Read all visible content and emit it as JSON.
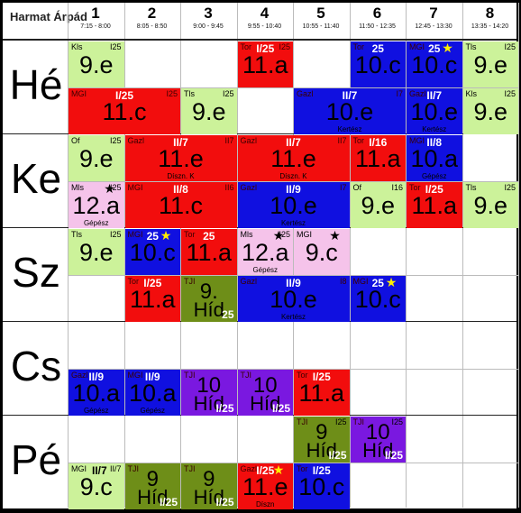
{
  "title": "Harmat Árpád",
  "periods": [
    {
      "n": "1",
      "t": "7:15 - 8:00"
    },
    {
      "n": "2",
      "t": "8:05 - 8:50"
    },
    {
      "n": "3",
      "t": "9:00 - 9:45"
    },
    {
      "n": "4",
      "t": "9:55 - 10:40"
    },
    {
      "n": "5",
      "t": "10:55 - 11:40"
    },
    {
      "n": "6",
      "t": "11:50 - 12:35"
    },
    {
      "n": "7",
      "t": "12:45 - 13:30"
    },
    {
      "n": "8",
      "t": "13:35 - 14:20"
    }
  ],
  "days": [
    "Hé",
    "Ke",
    "Sz",
    "Cs",
    "Pé"
  ],
  "lessons": [
    {
      "d": 0,
      "r": 0,
      "p": 0,
      "s": 1,
      "c": "green",
      "tl": "Kls",
      "tr": "I25",
      "cls": "9.e"
    },
    {
      "d": 0,
      "r": 0,
      "p": 3,
      "s": 1,
      "c": "red",
      "tl": "Tor",
      "tr": "I25",
      "cls": "11.a",
      "badge": "I/25"
    },
    {
      "d": 0,
      "r": 0,
      "p": 5,
      "s": 1,
      "c": "blue",
      "tl": "Tor",
      "tr": "",
      "cls": "10.c",
      "badge": "25"
    },
    {
      "d": 0,
      "r": 0,
      "p": 6,
      "s": 1,
      "c": "blue",
      "tl": "MGI",
      "tr": "",
      "cls": "10.c",
      "badge": "25",
      "star": "yellow"
    },
    {
      "d": 0,
      "r": 0,
      "p": 7,
      "s": 1,
      "c": "green",
      "tl": "Tls",
      "tr": "I25",
      "cls": "9.e"
    },
    {
      "d": 0,
      "r": 1,
      "p": 0,
      "s": 2,
      "c": "red",
      "tl": "MGI",
      "tr": "I25",
      "cls": "11.c",
      "badge": "I/25"
    },
    {
      "d": 0,
      "r": 1,
      "p": 2,
      "s": 1,
      "c": "green",
      "tl": "Tls",
      "tr": "I25",
      "cls": "9.e"
    },
    {
      "d": 0,
      "r": 1,
      "p": 4,
      "s": 2,
      "c": "blue",
      "tl": "Gazl",
      "tr": "I7",
      "cls": "10.e",
      "sub": "Kertész",
      "badge": "II/7"
    },
    {
      "d": 0,
      "r": 1,
      "p": 6,
      "s": 1,
      "c": "blue",
      "tl": "Gazl",
      "tr": "",
      "cls": "10.e",
      "sub": "Kertész",
      "badge": "II/7"
    },
    {
      "d": 0,
      "r": 1,
      "p": 7,
      "s": 1,
      "c": "green",
      "tl": "Kls",
      "tr": "I25",
      "cls": "9.e"
    },
    {
      "d": 1,
      "r": 0,
      "p": 0,
      "s": 1,
      "c": "green",
      "tl": "Of",
      "tr": "I25",
      "cls": "9.e"
    },
    {
      "d": 1,
      "r": 0,
      "p": 1,
      "s": 2,
      "c": "red",
      "tl": "Gazl",
      "tr": "II7",
      "cls": "11.e",
      "sub": "Díszn. K",
      "badge": "II/7"
    },
    {
      "d": 1,
      "r": 0,
      "p": 3,
      "s": 2,
      "c": "red",
      "tl": "Gazl",
      "tr": "II7",
      "cls": "11.e",
      "sub": "Díszn. K",
      "badge": "II/7"
    },
    {
      "d": 1,
      "r": 0,
      "p": 5,
      "s": 1,
      "c": "red",
      "tl": "Tor",
      "tr": "",
      "cls": "11.a",
      "badge": "I/16"
    },
    {
      "d": 1,
      "r": 0,
      "p": 6,
      "s": 1,
      "c": "blue",
      "tl": "MGI",
      "tr": "",
      "cls": "10.a",
      "sub": "Gépész",
      "badge": "II/8"
    },
    {
      "d": 1,
      "r": 1,
      "p": 0,
      "s": 1,
      "c": "pink",
      "tl": "Mls",
      "tr": "I25",
      "cls": "12.a",
      "sub": "Gépész",
      "star": "black"
    },
    {
      "d": 1,
      "r": 1,
      "p": 1,
      "s": 2,
      "c": "red",
      "tl": "MGI",
      "tr": "II6",
      "cls": "11.c",
      "badge": "II/8"
    },
    {
      "d": 1,
      "r": 1,
      "p": 3,
      "s": 2,
      "c": "blue",
      "tl": "Gazl",
      "tr": "I7",
      "cls": "10.e",
      "sub": "Kertész",
      "badge": "II/9"
    },
    {
      "d": 1,
      "r": 1,
      "p": 5,
      "s": 1,
      "c": "green",
      "tl": "Of",
      "tr": "I16",
      "cls": "9.e"
    },
    {
      "d": 1,
      "r": 1,
      "p": 6,
      "s": 1,
      "c": "red",
      "tl": "Tor",
      "tr": "",
      "cls": "11.a",
      "badge": "I/25"
    },
    {
      "d": 1,
      "r": 1,
      "p": 7,
      "s": 1,
      "c": "green",
      "tl": "Tls",
      "tr": "I25",
      "cls": "9.e"
    },
    {
      "d": 2,
      "r": 0,
      "p": 0,
      "s": 1,
      "c": "green",
      "tl": "Tls",
      "tr": "I25",
      "cls": "9.e"
    },
    {
      "d": 2,
      "r": 0,
      "p": 1,
      "s": 1,
      "c": "blue",
      "tl": "MGI",
      "tr": "",
      "cls": "10.c",
      "badge": "25",
      "star": "yellow"
    },
    {
      "d": 2,
      "r": 0,
      "p": 2,
      "s": 1,
      "c": "red",
      "tl": "Tor",
      "tr": "",
      "cls": "11.a",
      "badge": "25"
    },
    {
      "d": 2,
      "r": 0,
      "p": 3,
      "s": 1,
      "c": "pink",
      "tl": "Mls",
      "tr": "I25",
      "cls": "12.a",
      "sub": "Gépész",
      "star": "black"
    },
    {
      "d": 2,
      "r": 0,
      "p": 4,
      "s": 1,
      "c": "pink",
      "tl": "MGI",
      "tr": "",
      "cls": "9.c",
      "star": "black"
    },
    {
      "d": 2,
      "r": 1,
      "p": 1,
      "s": 1,
      "c": "red",
      "tl": "Tor",
      "tr": "",
      "cls": "11.a",
      "badge": "I/25"
    },
    {
      "d": 2,
      "r": 1,
      "p": 2,
      "s": 1,
      "c": "olive",
      "tl": "TJI",
      "tr": "",
      "cls": "9.",
      "cls2": "Híd",
      "badge": "25"
    },
    {
      "d": 2,
      "r": 1,
      "p": 3,
      "s": 2,
      "c": "blue",
      "tl": "Gazl",
      "tr": "I8",
      "cls": "10.e",
      "sub": "Kertész",
      "badge": "II/9"
    },
    {
      "d": 2,
      "r": 1,
      "p": 5,
      "s": 1,
      "c": "blue",
      "tl": "MGI",
      "tr": "",
      "cls": "10.c",
      "badge": "25",
      "star": "yellow"
    },
    {
      "d": 3,
      "r": 1,
      "p": 0,
      "s": 1,
      "c": "blue",
      "tl": "Gazl",
      "tr": "",
      "cls": "10.a",
      "sub": "Gépész",
      "badge": "II/9"
    },
    {
      "d": 3,
      "r": 1,
      "p": 1,
      "s": 1,
      "c": "blue",
      "tl": "MGI",
      "tr": "",
      "cls": "10.a",
      "sub": "Gépész",
      "badge": "II/9"
    },
    {
      "d": 3,
      "r": 1,
      "p": 2,
      "s": 1,
      "c": "purple",
      "tl": "TJI",
      "tr": "",
      "cls": "10",
      "cls2": "Híd",
      "badge": "I/25"
    },
    {
      "d": 3,
      "r": 1,
      "p": 3,
      "s": 1,
      "c": "purple",
      "tl": "TJI",
      "tr": "",
      "cls": "10",
      "cls2": "Híd",
      "badge": "I/25"
    },
    {
      "d": 3,
      "r": 1,
      "p": 4,
      "s": 1,
      "c": "red",
      "tl": "Tor",
      "tr": "",
      "cls": "11.a",
      "badge": "I/25"
    },
    {
      "d": 4,
      "r": 0,
      "p": 4,
      "s": 1,
      "c": "olive",
      "tl": "TJI",
      "tr": "I25",
      "cls": "9",
      "cls2": "Híd",
      "badge": "I/25"
    },
    {
      "d": 4,
      "r": 0,
      "p": 5,
      "s": 1,
      "c": "purple",
      "tl": "TJI",
      "tr": "I25",
      "cls": "10",
      "cls2": "Híd",
      "badge": "I/25"
    },
    {
      "d": 4,
      "r": 1,
      "p": 0,
      "s": 1,
      "c": "green",
      "tl": "MGI",
      "tr": "II/7",
      "cls": "9.c",
      "badge": "II/7",
      "badgeDark": true
    },
    {
      "d": 4,
      "r": 1,
      "p": 1,
      "s": 1,
      "c": "olive",
      "tl": "TJI",
      "tr": "",
      "cls": "9",
      "cls2": "Híd",
      "badge": "I/25"
    },
    {
      "d": 4,
      "r": 1,
      "p": 2,
      "s": 1,
      "c": "olive",
      "tl": "TJI",
      "tr": "",
      "cls": "9",
      "cls2": "Híd",
      "badge": "I/25"
    },
    {
      "d": 4,
      "r": 1,
      "p": 3,
      "s": 1,
      "c": "red",
      "tl": "Gazl",
      "tr": "",
      "cls": "11.e",
      "sub": "Díszn",
      "badge": "I/25",
      "star": "yellow"
    },
    {
      "d": 4,
      "r": 1,
      "p": 4,
      "s": 1,
      "c": "blue",
      "tl": "Tor",
      "tr": "",
      "cls": "10.c",
      "badge": "I/25"
    }
  ]
}
